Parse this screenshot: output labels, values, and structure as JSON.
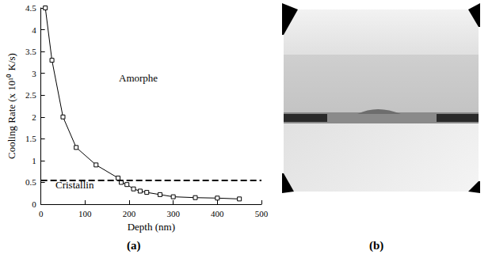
{
  "chart_data": {
    "type": "line",
    "x_label": "Depth (nm)",
    "y_label": "Cooling Rate (x 10¹⁰ K/s)",
    "x": [
      10,
      25,
      50,
      80,
      125,
      175,
      182,
      195,
      210,
      225,
      240,
      270,
      300,
      350,
      400,
      450
    ],
    "values": [
      4.5,
      3.3,
      2.0,
      1.3,
      0.9,
      0.6,
      0.5,
      0.45,
      0.35,
      0.3,
      0.27,
      0.22,
      0.17,
      0.15,
      0.14,
      0.12
    ],
    "color": "#000000",
    "marker": "square",
    "threshold": 0.55,
    "line_style": "dashed",
    "annotations": [
      "Amorphe",
      "Cristallin"
    ],
    "xlim": [
      0,
      500
    ],
    "xticks": [
      0,
      100,
      200,
      300,
      400,
      500
    ],
    "ylim": [
      0,
      4.5
    ],
    "yticks": [
      0,
      0.5,
      1,
      1.5,
      2,
      2.5,
      3,
      3.5,
      4,
      4.5
    ],
    "grid": false
  },
  "panel_labels": [
    "(a)",
    "(b)"
  ]
}
